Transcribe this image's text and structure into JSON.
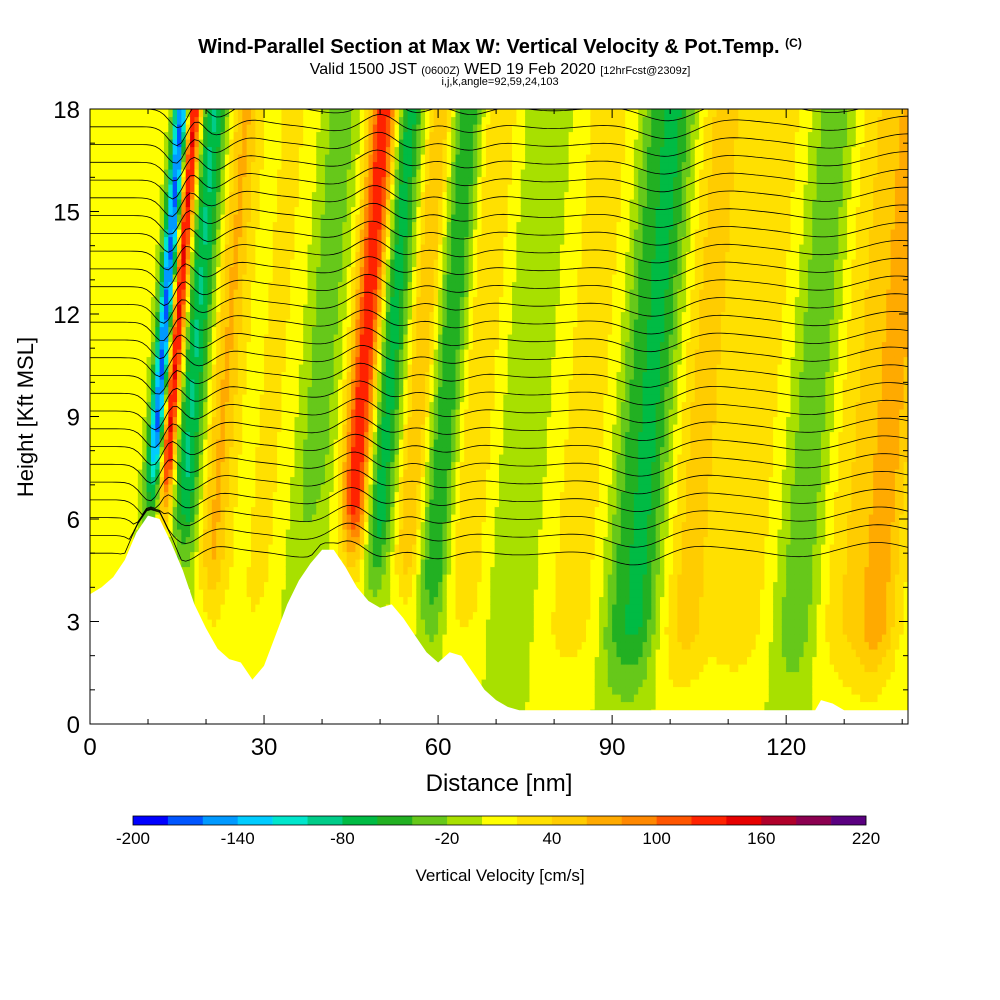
{
  "title": {
    "main": "Wind-Parallel Section at Max W: Vertical Velocity & Pot.Temp.",
    "tag": "(C)"
  },
  "subtitle": {
    "part1": "Valid 1500 JST",
    "part2": "(0600Z)",
    "part3": "WED 19 Feb 2020",
    "part4": "[12hrFcst@2309z]"
  },
  "subtitle2": "i,j,k,angle=92,59,24,103",
  "chart_data": {
    "type": "heatmap",
    "xlabel": "Distance [nm]",
    "ylabel": "Height [Kft MSL]",
    "xlim": [
      0,
      141
    ],
    "ylim": [
      0,
      18
    ],
    "x_ticks": [
      0,
      30,
      60,
      90,
      120
    ],
    "y_ticks": [
      0,
      3,
      6,
      9,
      12,
      15,
      18
    ],
    "colorbar": {
      "label": "Vertical Velocity [cm/s]",
      "min": -200,
      "max": 220,
      "step": 20,
      "tick_labels": [
        "-200",
        "-140",
        "-80",
        "-20",
        "40",
        "100",
        "160",
        "220"
      ],
      "tick_values": [
        -200,
        -140,
        -80,
        -20,
        40,
        100,
        160,
        220
      ],
      "colors": [
        "#0000ff",
        "#0055ff",
        "#0099ff",
        "#00ccff",
        "#00e6cc",
        "#00cc88",
        "#00bb44",
        "#22b022",
        "#66c81a",
        "#a8e000",
        "#ffff00",
        "#ffe000",
        "#ffcc00",
        "#ffaa00",
        "#ff8800",
        "#ff5500",
        "#ff2200",
        "#e60000",
        "#b0002a",
        "#8b0050",
        "#5a0080"
      ]
    },
    "terrain_kft": [
      [
        0,
        3.8
      ],
      [
        2,
        4.0
      ],
      [
        4,
        4.3
      ],
      [
        6,
        4.8
      ],
      [
        8,
        5.6
      ],
      [
        10,
        6.1
      ],
      [
        12,
        6.0
      ],
      [
        14,
        5.3
      ],
      [
        16,
        4.5
      ],
      [
        18,
        3.5
      ],
      [
        20,
        2.8
      ],
      [
        22,
        2.2
      ],
      [
        24,
        1.9
      ],
      [
        26,
        1.8
      ],
      [
        28,
        1.3
      ],
      [
        30,
        1.7
      ],
      [
        32,
        2.6
      ],
      [
        34,
        3.5
      ],
      [
        36,
        4.2
      ],
      [
        38,
        4.7
      ],
      [
        40,
        5.1
      ],
      [
        42,
        5.1
      ],
      [
        44,
        4.6
      ],
      [
        46,
        4.0
      ],
      [
        48,
        3.6
      ],
      [
        50,
        3.4
      ],
      [
        52,
        3.5
      ],
      [
        54,
        3.1
      ],
      [
        56,
        2.6
      ],
      [
        58,
        2.1
      ],
      [
        60,
        1.8
      ],
      [
        62,
        2.1
      ],
      [
        64,
        2.0
      ],
      [
        66,
        1.5
      ],
      [
        68,
        1.0
      ],
      [
        70,
        0.7
      ],
      [
        72,
        0.5
      ],
      [
        74,
        0.4
      ],
      [
        80,
        0.4
      ],
      [
        125,
        0.4
      ],
      [
        126,
        0.7
      ],
      [
        128,
        0.6
      ],
      [
        130,
        0.4
      ],
      [
        141,
        0.4
      ]
    ],
    "features": [
      {
        "x": 10.5,
        "w": -190,
        "width": 1.0
      },
      {
        "x": 12.5,
        "w": 170,
        "width": 1.0
      },
      {
        "x": 16.0,
        "w": -90,
        "width": 1.8
      },
      {
        "x": 21.5,
        "w": 55,
        "width": 1.8
      },
      {
        "x": 30.0,
        "w": 15,
        "width": 3.0
      },
      {
        "x": 38.0,
        "w": -40,
        "width": 2.5
      },
      {
        "x": 45.5,
        "w": 140,
        "width": 1.8
      },
      {
        "x": 49.5,
        "w": -85,
        "width": 2.0
      },
      {
        "x": 55.0,
        "w": 55,
        "width": 1.7
      },
      {
        "x": 60.0,
        "w": -70,
        "width": 2.0
      },
      {
        "x": 65.0,
        "w": 35,
        "width": 2.5
      },
      {
        "x": 74.0,
        "w": -25,
        "width": 3.5
      },
      {
        "x": 84.0,
        "w": 20,
        "width": 4.0
      },
      {
        "x": 92.0,
        "w": -45,
        "width": 2.0
      },
      {
        "x": 96.0,
        "w": -65,
        "width": 2.2
      },
      {
        "x": 104.0,
        "w": 40,
        "width": 2.5
      },
      {
        "x": 113.0,
        "w": 25,
        "width": 4.0
      },
      {
        "x": 123.0,
        "w": -45,
        "width": 2.8
      },
      {
        "x": 131.0,
        "w": 30,
        "width": 3.0
      },
      {
        "x": 137.0,
        "w": 60,
        "width": 2.5
      }
    ],
    "background_w": 8,
    "theta_contours": {
      "count": 26,
      "base_kft": 5.0,
      "spacing_kft": 0.52
    }
  }
}
